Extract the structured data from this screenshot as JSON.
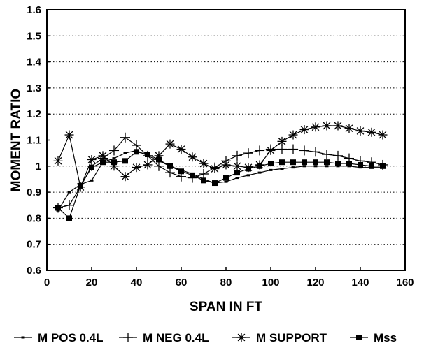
{
  "chart_data": {
    "type": "line",
    "xlabel": "SPAN IN FT",
    "ylabel": "MOMENT RATIO",
    "xlim": [
      0,
      160
    ],
    "ylim": [
      0.6,
      1.6
    ],
    "xticks": [
      0,
      20,
      40,
      60,
      80,
      100,
      120,
      140,
      160
    ],
    "yticks": [
      0.6,
      0.7,
      0.8,
      0.9,
      1,
      1.1,
      1.2,
      1.3,
      1.4,
      1.5,
      1.6
    ],
    "ytick_labels": [
      "0.6",
      "0.7",
      "0.8",
      "0.9",
      "1",
      "1.1",
      "1.2",
      "1.3",
      "1.4",
      "1.5",
      "1.6"
    ],
    "grid": "horizontal dotted",
    "legend_position": "bottom",
    "series": [
      {
        "name": "M POS 0.4L",
        "marker": "dash",
        "x": [
          5,
          10,
          15,
          20,
          25,
          30,
          35,
          40,
          45,
          50,
          55,
          60,
          65,
          70,
          75,
          80,
          85,
          90,
          95,
          100,
          105,
          110,
          115,
          120,
          125,
          130,
          135,
          140,
          145,
          150
        ],
        "y": [
          0.83,
          0.9,
          0.93,
          0.945,
          1.015,
          1.03,
          1.05,
          1.06,
          1.04,
          1.02,
          1.0,
          0.985,
          0.97,
          0.95,
          0.935,
          0.94,
          0.955,
          0.965,
          0.975,
          0.985,
          0.99,
          0.995,
          1.0,
          1.0,
          1.0,
          1.0,
          1.0,
          0.995,
          0.995,
          0.995
        ]
      },
      {
        "name": "M NEG 0.4L",
        "marker": "plus",
        "x": [
          5,
          10,
          15,
          20,
          25,
          30,
          35,
          40,
          45,
          50,
          55,
          60,
          65,
          70,
          75,
          80,
          85,
          90,
          95,
          100,
          105,
          110,
          115,
          120,
          125,
          130,
          135,
          140,
          145,
          150
        ],
        "y": [
          0.84,
          0.85,
          0.92,
          1.0,
          1.03,
          1.06,
          1.11,
          1.08,
          1.04,
          1.0,
          0.975,
          0.96,
          0.955,
          0.97,
          0.995,
          1.02,
          1.04,
          1.05,
          1.06,
          1.065,
          1.065,
          1.065,
          1.06,
          1.055,
          1.045,
          1.04,
          1.03,
          1.02,
          1.015,
          1.005
        ]
      },
      {
        "name": "M SUPPORT",
        "marker": "asterisk",
        "x": [
          5,
          10,
          15,
          20,
          25,
          30,
          35,
          40,
          45,
          50,
          55,
          60,
          65,
          70,
          75,
          80,
          85,
          90,
          95,
          100,
          105,
          110,
          115,
          120,
          125,
          130,
          135,
          140,
          145,
          150
        ],
        "y": [
          1.02,
          1.12,
          0.92,
          1.025,
          1.04,
          1.0,
          0.96,
          0.995,
          1.005,
          1.04,
          1.085,
          1.065,
          1.035,
          1.01,
          0.99,
          1.005,
          1.0,
          0.995,
          1.005,
          1.06,
          1.095,
          1.12,
          1.14,
          1.15,
          1.155,
          1.155,
          1.145,
          1.135,
          1.13,
          1.12
        ]
      },
      {
        "name": "Mss",
        "marker": "square",
        "x": [
          5,
          10,
          15,
          20,
          25,
          30,
          35,
          40,
          45,
          50,
          55,
          60,
          65,
          70,
          75,
          80,
          85,
          90,
          95,
          100,
          105,
          110,
          115,
          120,
          125,
          130,
          135,
          140,
          145,
          150
        ],
        "y": [
          0.84,
          0.8,
          0.925,
          0.995,
          1.015,
          1.015,
          1.02,
          1.055,
          1.045,
          1.025,
          1.0,
          0.98,
          0.965,
          0.945,
          0.935,
          0.955,
          0.975,
          0.99,
          1.0,
          1.01,
          1.015,
          1.015,
          1.015,
          1.015,
          1.015,
          1.01,
          1.01,
          1.005,
          1.0,
          1.0
        ]
      }
    ]
  }
}
